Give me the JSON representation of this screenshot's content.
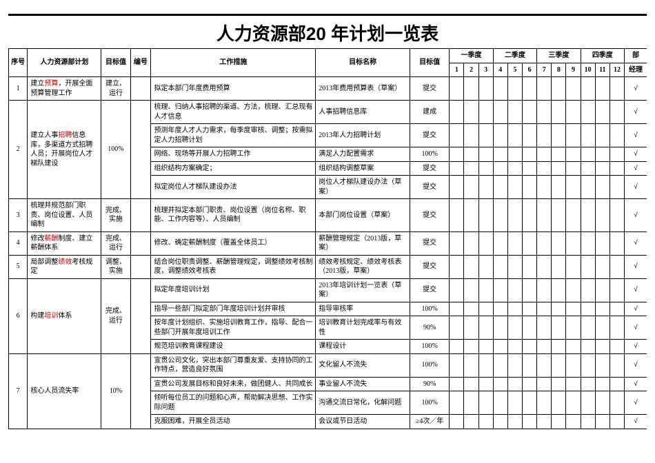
{
  "title": "人力资源部20  年计划一览表",
  "headers": {
    "seq": "序号",
    "plan": "人力资源部计划",
    "target1": "目标值",
    "no": "编号",
    "measure": "工作措施",
    "target_name": "目标名称",
    "target2": "目标值",
    "q1": "一季度",
    "q2": "二季度",
    "q3": "三季度",
    "q4": "四季度",
    "resp_partial": "部",
    "m1": "1",
    "m2": "2",
    "m3": "3",
    "m4": "4",
    "m5": "5",
    "m6": "6",
    "m7": "7",
    "m8": "8",
    "m9": "9",
    "m10": "10",
    "m11": "11",
    "m12": "12",
    "mgr": "经理"
  },
  "rows": [
    {
      "seq": "1",
      "plan_pre": "建立",
      "plan_red": "预算",
      "plan_post": "，开展全面预算管理工作",
      "tgt1": "建立、运行",
      "measure": "拟定本部门年度费用预算",
      "tname": "2013年费用预算表（草案）",
      "tgt2": "提交",
      "check": true
    },
    {
      "seq": "2",
      "plan_pre": "建立人事",
      "plan_red": "招聘",
      "plan_post": "信息库，多渠道方式招聘人员；开展岗位人才梯队建设",
      "tgt1": "100%",
      "measure": "梳理、归纳人事招聘的渠道、方法，梳理、汇总现有人才信息",
      "tname": "人事招聘信息库",
      "tgt2": "建成",
      "check": true
    },
    {
      "measure": "预测年度人才人力需求，每季度审核、调整；按需拟定人力招聘计划",
      "tname": "2013年人力招聘计划",
      "tgt2": "提交",
      "check": true
    },
    {
      "measure": "网络、现场等开展人力招聘工作",
      "tname": "满足人力配置需求",
      "tgt2": "100%",
      "check": true
    },
    {
      "measure": "组织结构方案确定；",
      "tname": "组织结构调整草案",
      "tgt2": "提交",
      "check": true
    },
    {
      "measure": "拟定岗位人才梯队建设办法",
      "tname": "岗位人才梯队建设办法（草案）",
      "tgt2": "提交",
      "check": true
    },
    {
      "seq": "3",
      "plan_pre": "梳理并规范部门职责、岗位设置、人员编制",
      "plan_red": "",
      "plan_post": "",
      "tgt1": "完成、实施",
      "measure": "梳理并拟定本部门职责、岗位设置（岗位名称、职能、工作内容等）、人员编制",
      "tname": "本部门岗位设置（草案）",
      "tgt2": "提交",
      "check": true
    },
    {
      "seq": "4",
      "plan_pre": "修改",
      "plan_red": "薪酬",
      "plan_post": "制度、建立薪酬体系",
      "tgt1": "完成、运行",
      "measure": "修改、确定薪酬制度（覆盖全体员工）",
      "tname": "薪酬管理规定（2013版，草案）",
      "tgt2": "提交",
      "check": true
    },
    {
      "seq": "5",
      "plan_pre": "局部调整",
      "plan_red": "绩效",
      "plan_post": "考核规定",
      "tgt1": "调整、实施",
      "measure": "结合岗位职责调整、薪酬管理规定，调整绩效考核制度，调整绩效考核表",
      "tname": "绩效考核规定、绩效考核表（2013版，草案）",
      "tgt2": "提交",
      "check": true
    },
    {
      "seq": "6",
      "plan_pre": "构建",
      "plan_red": "培训",
      "plan_post": "体系",
      "tgt1": "完成、运行",
      "measure": "拟定年度培训计划",
      "tname": "2013年培训计划一览表（草案）",
      "tgt2": "提交",
      "check": true
    },
    {
      "measure": "指导一些部门拟定部门年度培训计划并审核",
      "tname": "指导审核率",
      "tgt2": "100%",
      "check": true
    },
    {
      "measure": "按年度计划组织、实施培训教育工作，指导、配合一些部门开展年度培训工作",
      "tname": "培训教育计划完成率与有效性",
      "tgt2": "90%",
      "check": true
    },
    {
      "measure": "规范培训教育课程建设",
      "tname": "课程设计",
      "tgt2": "100%",
      "check": true
    },
    {
      "seq": "7",
      "plan_pre": "核心人员流失率",
      "plan_red": "",
      "plan_post": "",
      "tgt1": "10%",
      "measure": "宣贯公司文化，突出本部门尊重友爱、支持协同的工作特点，营造良好氛围",
      "tname": "文化留人不流失",
      "tgt2": "100%",
      "check": true
    },
    {
      "measure": "宣贯公司发展目标和良好未来，做团健人、共同成长",
      "tname": "事业留人不流失",
      "tgt2": "90%",
      "check": true
    },
    {
      "measure": "倾听每位员工的问题和心声，帮助解决思想、工作实际问题",
      "tname": "沟通交流日常化，化解问题",
      "tgt2": "100%",
      "check": true
    },
    {
      "measure": "克服困难，开展全员活动",
      "tname": "会议或节日活动",
      "tgt2": "≥4次／年",
      "check": true
    }
  ],
  "spans": [
    {
      "start": 0,
      "count": 1
    },
    {
      "start": 1,
      "count": 5
    },
    {
      "start": 6,
      "count": 1
    },
    {
      "start": 7,
      "count": 1
    },
    {
      "start": 8,
      "count": 1
    },
    {
      "start": 9,
      "count": 4
    },
    {
      "start": 13,
      "count": 4
    }
  ]
}
